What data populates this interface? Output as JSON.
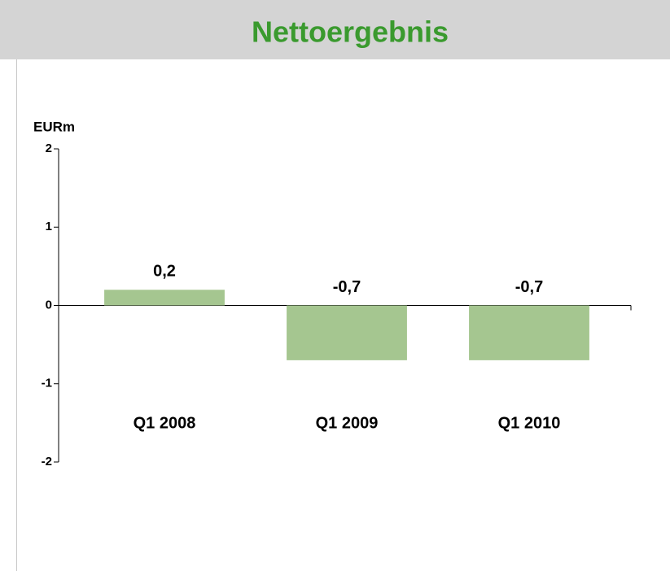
{
  "chart_data": {
    "type": "bar",
    "title": "Nettoergebnis",
    "y_label": "EURm",
    "categories": [
      "Q1 2008",
      "Q1 2009",
      "Q1 2010"
    ],
    "values": [
      0.2,
      -0.7,
      -0.7
    ],
    "value_labels": [
      "0,2",
      "-0,7",
      "-0,7"
    ],
    "color": "#a5c690",
    "ylim": [
      -2,
      2
    ],
    "yticks": [
      -2,
      -1,
      0,
      1,
      2
    ],
    "grid": false
  }
}
